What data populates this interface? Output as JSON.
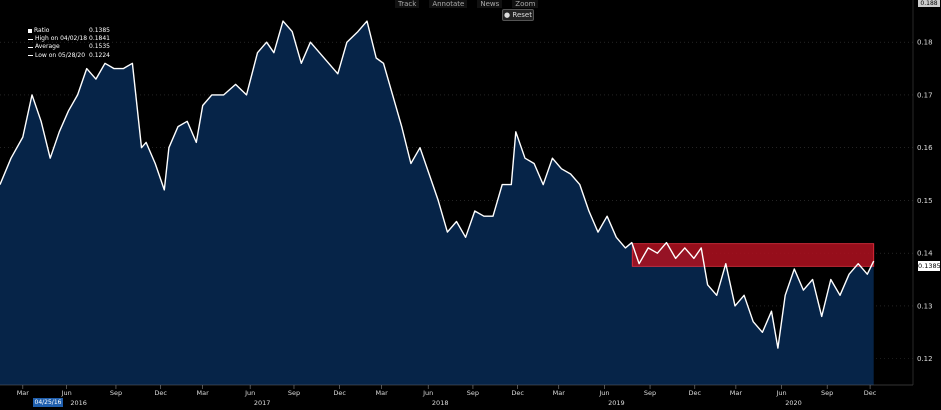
{
  "toolbar": {
    "track": "Track",
    "annotate": "Annotate",
    "news": "News",
    "zoom": "Zoom",
    "reset": "Reset"
  },
  "topright_value": "0.188",
  "legend": {
    "ratio_label": "Ratio",
    "ratio_value": "0.1385",
    "high_label": "High on 04/02/18",
    "high_value": "0.1841",
    "avg_label": "Average",
    "avg_value": "0.1535",
    "low_label": "Low on 05/28/20",
    "low_value": "0.1224"
  },
  "start_date": "04/25/16",
  "last_value_label": "0.1385",
  "chart_data": {
    "type": "area",
    "title": "",
    "xlabel": "",
    "ylabel": "",
    "ylim": [
      0.115,
      0.188
    ],
    "yticks": [
      0.12,
      0.13,
      0.14,
      0.15,
      0.16,
      0.17,
      0.18
    ],
    "ytick_labels": [
      "0.12",
      "0.13",
      "0.14",
      "0.15",
      "0.16",
      "0.17",
      "0.18"
    ],
    "x_months": [
      {
        "label": "Mar",
        "year": "",
        "pos": 0.025
      },
      {
        "label": "Jun",
        "year": "2016",
        "pos": 0.073
      },
      {
        "label": "Sep",
        "year": "",
        "pos": 0.127
      },
      {
        "label": "Dec",
        "year": "",
        "pos": 0.176
      },
      {
        "label": "Mar",
        "year": "",
        "pos": 0.222
      },
      {
        "label": "Jun",
        "year": "2017",
        "pos": 0.274
      },
      {
        "label": "Sep",
        "year": "",
        "pos": 0.322
      },
      {
        "label": "Dec",
        "year": "",
        "pos": 0.372
      },
      {
        "label": "Mar",
        "year": "",
        "pos": 0.418
      },
      {
        "label": "Jun",
        "year": "2018",
        "pos": 0.469
      },
      {
        "label": "Sep",
        "year": "",
        "pos": 0.518
      },
      {
        "label": "Dec",
        "year": "",
        "pos": 0.567
      },
      {
        "label": "Mar",
        "year": "",
        "pos": 0.612
      },
      {
        "label": "Jun",
        "year": "2019",
        "pos": 0.662
      },
      {
        "label": "Sep",
        "year": "",
        "pos": 0.712
      },
      {
        "label": "Dec",
        "year": "",
        "pos": 0.761
      },
      {
        "label": "Mar",
        "year": "",
        "pos": 0.806
      },
      {
        "label": "Jun",
        "year": "2020",
        "pos": 0.856
      },
      {
        "label": "Sep",
        "year": "",
        "pos": 0.906
      },
      {
        "label": "Dec",
        "year": "",
        "pos": 0.953
      }
    ],
    "series": [
      {
        "x": [
          0.0,
          0.012,
          0.025,
          0.035,
          0.045,
          0.055,
          0.065,
          0.075,
          0.085,
          0.095,
          0.105,
          0.115,
          0.125,
          0.135,
          0.145,
          0.155,
          0.16,
          0.17,
          0.18,
          0.185,
          0.195,
          0.205,
          0.215,
          0.222,
          0.232,
          0.245,
          0.258,
          0.27,
          0.282,
          0.292,
          0.3,
          0.31,
          0.32,
          0.33,
          0.34,
          0.35,
          0.36,
          0.37,
          0.38,
          0.392,
          0.402,
          0.412,
          0.42,
          0.43,
          0.44,
          0.45,
          0.46,
          0.47,
          0.48,
          0.49,
          0.5,
          0.51,
          0.52,
          0.53,
          0.54,
          0.55,
          0.56,
          0.565,
          0.575,
          0.585,
          0.595,
          0.605,
          0.615,
          0.625,
          0.635,
          0.645,
          0.655,
          0.665,
          0.675,
          0.685,
          0.692,
          0.7,
          0.71,
          0.72,
          0.73,
          0.74,
          0.75,
          0.76,
          0.768,
          0.775,
          0.785,
          0.795,
          0.805,
          0.815,
          0.825,
          0.835,
          0.845,
          0.852,
          0.86,
          0.87,
          0.88,
          0.89,
          0.9,
          0.91,
          0.92,
          0.93,
          0.94,
          0.95,
          0.957
        ],
        "values": [
          0.153,
          0.158,
          0.162,
          0.17,
          0.165,
          0.158,
          0.163,
          0.167,
          0.17,
          0.175,
          0.173,
          0.176,
          0.175,
          0.175,
          0.176,
          0.16,
          0.161,
          0.157,
          0.152,
          0.16,
          0.164,
          0.165,
          0.161,
          0.168,
          0.17,
          0.17,
          0.172,
          0.17,
          0.178,
          0.18,
          0.178,
          0.184,
          0.182,
          0.176,
          0.18,
          0.178,
          0.176,
          0.174,
          0.18,
          0.182,
          0.184,
          0.177,
          0.176,
          0.17,
          0.164,
          0.157,
          0.16,
          0.155,
          0.15,
          0.144,
          0.146,
          0.143,
          0.148,
          0.147,
          0.147,
          0.153,
          0.153,
          0.163,
          0.158,
          0.157,
          0.153,
          0.158,
          0.156,
          0.155,
          0.153,
          0.148,
          0.144,
          0.147,
          0.143,
          0.141,
          0.142,
          0.138,
          0.141,
          0.14,
          0.142,
          0.139,
          0.141,
          0.139,
          0.141,
          0.134,
          0.132,
          0.138,
          0.13,
          0.132,
          0.127,
          0.125,
          0.129,
          0.122,
          0.132,
          0.137,
          0.133,
          0.135,
          0.128,
          0.135,
          0.132,
          0.136,
          0.138,
          0.136,
          0.1385
        ]
      }
    ],
    "highlight_band": {
      "x_start": 0.6925,
      "x_end": 0.957,
      "y_low": 0.1375,
      "y_high": 0.1418
    }
  },
  "colors": {
    "fill": "#062448",
    "line": "#ffffff",
    "band": "#b01020",
    "grid": "#3a3a3a"
  }
}
